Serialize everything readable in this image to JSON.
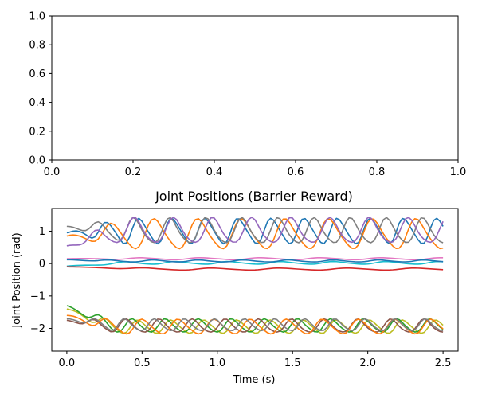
{
  "chart_data": [
    {
      "type": "line",
      "title": "",
      "xlabel": "",
      "ylabel": "",
      "xlim": [
        0.0,
        1.0
      ],
      "ylim": [
        0.0,
        1.0
      ],
      "x_ticks": [
        "0.0",
        "0.2",
        "0.4",
        "0.6",
        "0.8",
        "1.0"
      ],
      "y_ticks": [
        "0.0",
        "0.2",
        "0.4",
        "0.6",
        "0.8",
        "1.0"
      ],
      "series": []
    },
    {
      "type": "line",
      "title": "Joint Positions (Barrier Reward)",
      "xlabel": "Time (s)",
      "ylabel": "Joint Position (rad)",
      "xlim": [
        -0.1,
        2.6
      ],
      "ylim": [
        -2.7,
        1.7
      ],
      "x_ticks": [
        "0.0",
        "0.5",
        "1.0",
        "1.5",
        "2.0",
        "2.5"
      ],
      "y_ticks": [
        "−2",
        "−1",
        "0",
        "1"
      ],
      "grid": false,
      "legend": "none",
      "x_range": [
        0.0,
        2.5
      ],
      "series": [
        {
          "color": "#1f77b4",
          "start": 0.95,
          "amp": 0.38,
          "mean": 1.0,
          "period": 0.22,
          "phase": 0.3,
          "trans": 0.35
        },
        {
          "color": "#ff7f0e",
          "start": 0.85,
          "amp": 0.45,
          "mean": 0.9,
          "period": 0.29,
          "phase": 1.4,
          "trans": 0.4
        },
        {
          "color": "#7f7f7f",
          "start": 1.15,
          "amp": 0.38,
          "mean": 1.0,
          "period": 0.24,
          "phase": 2.4,
          "trans": 0.4
        },
        {
          "color": "#9467bd",
          "start": 0.55,
          "amp": 0.38,
          "mean": 1.0,
          "period": 0.26,
          "phase": 3.2,
          "trans": 0.35
        },
        {
          "color": "#e377c2",
          "start": 0.15,
          "amp": 0.03,
          "mean": 0.15,
          "period": 0.4,
          "phase": 0.0,
          "trans": 0.5
        },
        {
          "color": "#17becf",
          "start": -0.08,
          "amp": 0.04,
          "mean": 0.02,
          "period": 0.35,
          "phase": 1.0,
          "trans": 0.4
        },
        {
          "color": "#1f77b4",
          "start": 0.12,
          "amp": 0.03,
          "mean": 0.08,
          "period": 0.3,
          "phase": 2.0,
          "trans": 0.3
        },
        {
          "color": "#d62728",
          "start": -0.1,
          "amp": 0.03,
          "mean": -0.17,
          "period": 0.45,
          "phase": 0.5,
          "trans": 0.6
        },
        {
          "color": "#bcbd22",
          "start": -1.4,
          "amp": 0.2,
          "mean": -1.95,
          "period": 0.22,
          "phase": 0.5,
          "trans": 0.3
        },
        {
          "color": "#2ca02c",
          "start": -1.3,
          "amp": 0.2,
          "mean": -1.92,
          "period": 0.22,
          "phase": 1.6,
          "trans": 0.3
        },
        {
          "color": "#8c564b",
          "start": -1.75,
          "amp": 0.2,
          "mean": -1.93,
          "period": 0.22,
          "phase": 2.8,
          "trans": 0.3
        },
        {
          "color": "#ff7f0e",
          "start": -1.6,
          "amp": 0.22,
          "mean": -1.95,
          "period": 0.24,
          "phase": 0.9,
          "trans": 0.3
        },
        {
          "color": "#7f7f7f",
          "start": -1.7,
          "amp": 0.18,
          "mean": -1.9,
          "period": 0.2,
          "phase": 2.0,
          "trans": 0.3
        }
      ]
    }
  ]
}
